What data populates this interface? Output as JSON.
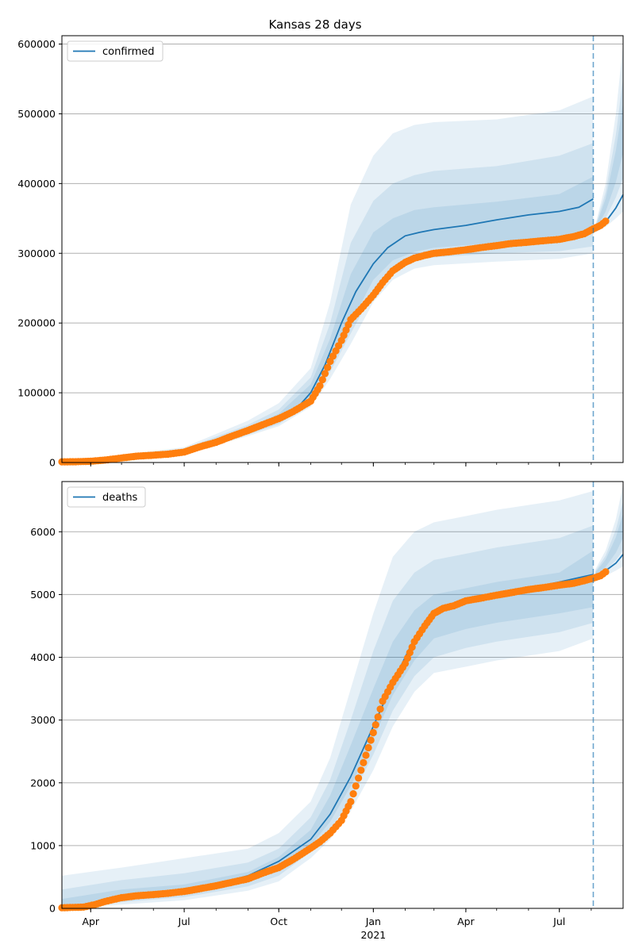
{
  "figure": {
    "title": "Kansas 28 days"
  },
  "colors": {
    "line": "#1f77b4",
    "band": "#1f77b4",
    "points": "#ff7f0e",
    "grid": "#b0b0b0",
    "forecast_line": "#1f77b4"
  },
  "x_ticks": [
    {
      "date": "2020-04-01",
      "label": "Apr"
    },
    {
      "date": "2020-07-01",
      "label": "Jul"
    },
    {
      "date": "2020-10-01",
      "label": "Oct"
    },
    {
      "date": "2021-01-01",
      "label": "Jan",
      "sublabel": "2021"
    },
    {
      "date": "2021-04-01",
      "label": "Apr"
    },
    {
      "date": "2021-07-01",
      "label": "Jul"
    }
  ],
  "chart_data": [
    {
      "type": "line",
      "panel": "top",
      "legend": [
        "confirmed"
      ],
      "legend_position": "top-left",
      "grid": "y",
      "xlim": [
        "2020-03-04",
        "2021-09-01"
      ],
      "ylim": [
        0,
        612000
      ],
      "yticks": [
        0,
        100000,
        200000,
        300000,
        400000,
        500000,
        600000
      ],
      "forecast_start": "2021-08-03",
      "median": {
        "name": "confirmed",
        "x": [
          "2020-03-04",
          "2020-04-01",
          "2020-05-01",
          "2020-06-01",
          "2020-07-01",
          "2020-08-01",
          "2020-09-01",
          "2020-10-01",
          "2020-10-20",
          "2020-11-01",
          "2020-11-15",
          "2020-12-01",
          "2020-12-15",
          "2021-01-01",
          "2021-01-15",
          "2021-02-01",
          "2021-02-15",
          "2021-03-01",
          "2021-04-01",
          "2021-05-01",
          "2021-06-01",
          "2021-07-01",
          "2021-07-20",
          "2021-08-03"
        ],
        "y": [
          500,
          1500,
          6000,
          11000,
          16000,
          30000,
          45000,
          63000,
          80000,
          100000,
          140000,
          200000,
          245000,
          285000,
          308000,
          325000,
          330000,
          334000,
          340000,
          348000,
          355000,
          360000,
          366000,
          378000
        ]
      },
      "forecast": {
        "x": [
          "2021-08-05",
          "2021-08-15",
          "2021-08-25",
          "2021-09-01"
        ],
        "y": [
          335000,
          345000,
          365000,
          384000
        ]
      },
      "bands": [
        {
          "x": [
            "2020-03-04",
            "2020-05-01",
            "2020-07-01",
            "2020-09-01",
            "2020-10-01",
            "2020-11-01",
            "2020-11-20",
            "2020-12-10",
            "2021-01-01",
            "2021-01-20",
            "2021-02-10",
            "2021-03-01",
            "2021-05-01",
            "2021-07-01",
            "2021-08-03"
          ],
          "lo": [
            0,
            3000,
            12000,
            38000,
            52000,
            80000,
            120000,
            170000,
            230000,
            262000,
            278000,
            283000,
            288000,
            292000,
            300000
          ],
          "hi": [
            1500,
            11000,
            22000,
            60000,
            85000,
            135000,
            230000,
            370000,
            440000,
            472000,
            484000,
            488000,
            492000,
            505000,
            525000
          ]
        },
        {
          "x": [
            "2020-03-04",
            "2020-05-01",
            "2020-07-01",
            "2020-09-01",
            "2020-10-01",
            "2020-11-01",
            "2020-11-20",
            "2020-12-10",
            "2021-01-01",
            "2021-01-20",
            "2021-02-10",
            "2021-03-01",
            "2021-05-01",
            "2021-07-01",
            "2021-08-03"
          ],
          "lo": [
            200,
            4000,
            13000,
            40000,
            55000,
            85000,
            130000,
            185000,
            245000,
            276000,
            290000,
            294000,
            300000,
            303000,
            310000
          ],
          "hi": [
            1200,
            9000,
            20000,
            54000,
            76000,
            122000,
            200000,
            315000,
            375000,
            400000,
            412000,
            418000,
            425000,
            440000,
            458000
          ]
        },
        {
          "x": [
            "2020-03-04",
            "2020-05-01",
            "2020-07-01",
            "2020-09-01",
            "2020-10-01",
            "2020-11-01",
            "2020-11-20",
            "2020-12-10",
            "2021-01-01",
            "2021-01-20",
            "2021-02-10",
            "2021-03-01",
            "2021-05-01",
            "2021-07-01",
            "2021-08-03"
          ],
          "lo": [
            400,
            5000,
            14000,
            42000,
            58000,
            90000,
            140000,
            200000,
            262000,
            290000,
            302000,
            308000,
            315000,
            320000,
            330000
          ],
          "hi": [
            900,
            8000,
            18000,
            50000,
            70000,
            112000,
            178000,
            270000,
            330000,
            350000,
            362000,
            366000,
            374000,
            385000,
            410000
          ]
        }
      ],
      "forecast_bands": {
        "x": [
          "2021-08-05",
          "2021-08-15",
          "2021-08-25",
          "2021-09-01"
        ],
        "lo": [
          330000,
          338000,
          350000,
          360000
        ],
        "hi": [
          340000,
          400000,
          500000,
          600000
        ]
      },
      "observed": {
        "x": [
          "2020-03-04",
          "2020-03-20",
          "2020-04-01",
          "2020-04-15",
          "2020-05-01",
          "2020-05-15",
          "2020-06-01",
          "2020-06-15",
          "2020-07-01",
          "2020-07-15",
          "2020-08-01",
          "2020-08-15",
          "2020-09-01",
          "2020-09-15",
          "2020-10-01",
          "2020-10-15",
          "2020-11-01",
          "2020-11-10",
          "2020-11-20",
          "2020-12-01",
          "2020-12-10",
          "2020-12-20",
          "2021-01-01",
          "2021-01-10",
          "2021-01-20",
          "2021-02-01",
          "2021-02-10",
          "2021-02-20",
          "2021-03-01",
          "2021-03-15",
          "2021-04-01",
          "2021-04-15",
          "2021-05-01",
          "2021-05-15",
          "2021-06-01",
          "2021-06-15",
          "2021-07-01",
          "2021-07-15",
          "2021-07-25",
          "2021-08-03",
          "2021-08-10",
          "2021-08-15"
        ],
        "y": [
          1000,
          1200,
          1800,
          3500,
          6500,
          9000,
          10500,
          12000,
          15000,
          22000,
          29000,
          37000,
          46000,
          54000,
          63000,
          73000,
          88000,
          110000,
          145000,
          175000,
          205000,
          220000,
          240000,
          258000,
          275000,
          287000,
          293000,
          297000,
          300000,
          302000,
          305000,
          308000,
          311000,
          314000,
          316000,
          318000,
          320000,
          324000,
          328000,
          335000,
          340000,
          346000
        ]
      }
    },
    {
      "type": "line",
      "panel": "bottom",
      "legend": [
        "deaths"
      ],
      "legend_position": "top-left",
      "grid": "y",
      "xlim": [
        "2020-03-04",
        "2021-09-01"
      ],
      "ylim": [
        0,
        6800
      ],
      "yticks": [
        0,
        1000,
        2000,
        3000,
        4000,
        5000,
        6000
      ],
      "forecast_start": "2021-08-03",
      "median": {
        "name": "deaths",
        "x": [
          "2020-03-04",
          "2020-04-01",
          "2020-05-01",
          "2020-06-01",
          "2020-07-01",
          "2020-08-01",
          "2020-09-01",
          "2020-10-01",
          "2020-11-01",
          "2020-11-20",
          "2020-12-10",
          "2021-01-01",
          "2021-01-20",
          "2021-02-10",
          "2021-03-01",
          "2021-04-01",
          "2021-05-01",
          "2021-06-01",
          "2021-07-01",
          "2021-08-03"
        ],
        "y": [
          10,
          40,
          180,
          230,
          280,
          380,
          520,
          750,
          1100,
          1500,
          2100,
          2900,
          3600,
          4300,
          4700,
          4900,
          5000,
          5100,
          5200,
          5320
        ]
      },
      "forecast": {
        "x": [
          "2021-08-05",
          "2021-08-15",
          "2021-08-25",
          "2021-09-01"
        ],
        "y": [
          5300,
          5380,
          5500,
          5640
        ]
      },
      "bands": [
        {
          "x": [
            "2020-03-04",
            "2020-05-01",
            "2020-07-01",
            "2020-09-01",
            "2020-10-01",
            "2020-11-01",
            "2020-11-20",
            "2020-12-10",
            "2021-01-01",
            "2021-01-20",
            "2021-02-10",
            "2021-03-01",
            "2021-04-01",
            "2021-05-01",
            "2021-07-01",
            "2021-08-03"
          ],
          "lo": [
            0,
            60,
            130,
            280,
            430,
            800,
            1100,
            1550,
            2200,
            2900,
            3450,
            3750,
            3850,
            3950,
            4100,
            4300
          ],
          "hi": [
            520,
            650,
            800,
            950,
            1200,
            1700,
            2400,
            3500,
            4700,
            5600,
            6000,
            6150,
            6250,
            6350,
            6500,
            6650
          ]
        },
        {
          "x": [
            "2020-03-04",
            "2020-05-01",
            "2020-07-01",
            "2020-09-01",
            "2020-10-01",
            "2020-11-01",
            "2020-11-20",
            "2020-12-10",
            "2021-01-01",
            "2021-01-20",
            "2021-02-10",
            "2021-03-01",
            "2021-04-01",
            "2021-05-01",
            "2021-07-01",
            "2021-08-03"
          ],
          "lo": [
            0,
            100,
            180,
            350,
            520,
            900,
            1250,
            1750,
            2450,
            3150,
            3700,
            4000,
            4150,
            4250,
            4400,
            4550
          ],
          "hi": [
            300,
            450,
            560,
            730,
            950,
            1450,
            2050,
            3000,
            4100,
            4900,
            5350,
            5550,
            5650,
            5750,
            5900,
            6100
          ]
        },
        {
          "x": [
            "2020-03-04",
            "2020-05-01",
            "2020-07-01",
            "2020-09-01",
            "2020-10-01",
            "2020-11-01",
            "2020-11-20",
            "2020-12-10",
            "2021-01-01",
            "2021-01-20",
            "2021-02-10",
            "2021-03-01",
            "2021-04-01",
            "2021-05-01",
            "2021-07-01",
            "2021-08-03"
          ],
          "lo": [
            0,
            130,
            220,
            420,
            620,
            1000,
            1380,
            1950,
            2700,
            3400,
            3950,
            4300,
            4450,
            4550,
            4700,
            4800
          ],
          "hi": [
            150,
            300,
            380,
            580,
            820,
            1250,
            1800,
            2600,
            3500,
            4250,
            4750,
            5000,
            5100,
            5200,
            5350,
            5700
          ]
        }
      ],
      "forecast_bands": {
        "x": [
          "2021-08-05",
          "2021-08-15",
          "2021-08-25",
          "2021-09-01"
        ],
        "lo": [
          5250,
          5300,
          5380,
          5450
        ],
        "hi": [
          5400,
          5700,
          6200,
          6750
        ]
      },
      "observed": {
        "x": [
          "2020-03-04",
          "2020-03-25",
          "2020-04-05",
          "2020-04-15",
          "2020-05-01",
          "2020-05-15",
          "2020-06-01",
          "2020-06-15",
          "2020-07-01",
          "2020-07-15",
          "2020-08-01",
          "2020-08-15",
          "2020-09-01",
          "2020-09-15",
          "2020-10-01",
          "2020-10-15",
          "2020-11-01",
          "2020-11-10",
          "2020-11-20",
          "2020-12-01",
          "2020-12-10",
          "2020-12-20",
          "2021-01-01",
          "2021-01-10",
          "2021-01-20",
          "2021-02-01",
          "2021-02-10",
          "2021-02-20",
          "2021-03-01",
          "2021-03-10",
          "2021-03-20",
          "2021-04-01",
          "2021-04-15",
          "2021-05-01",
          "2021-05-15",
          "2021-06-01",
          "2021-06-15",
          "2021-07-01",
          "2021-07-15",
          "2021-07-25",
          "2021-08-03",
          "2021-08-10",
          "2021-08-15"
        ],
        "y": [
          10,
          20,
          60,
          110,
          170,
          200,
          220,
          240,
          270,
          310,
          360,
          410,
          470,
          560,
          650,
          780,
          960,
          1060,
          1200,
          1400,
          1700,
          2200,
          2800,
          3300,
          3600,
          3900,
          4250,
          4500,
          4700,
          4780,
          4820,
          4900,
          4940,
          4990,
          5030,
          5080,
          5110,
          5150,
          5180,
          5220,
          5260,
          5300,
          5360
        ]
      }
    }
  ]
}
